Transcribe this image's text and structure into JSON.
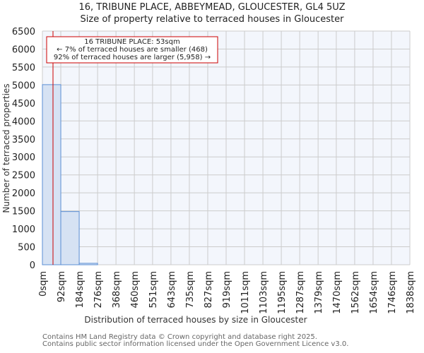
{
  "header": {
    "title": "16, TRIBUNE PLACE, ABBEYMEAD, GLOUCESTER, GL4 5UZ",
    "subtitle": "Size of property relative to terraced houses in Gloucester"
  },
  "annotation": {
    "line1": "16 TRIBUNE PLACE: 53sqm",
    "line2": "← 7% of terraced houses are smaller (468)",
    "line3": "92% of terraced houses are larger (5,958) →",
    "marker_value": 53
  },
  "footer": {
    "line1": "Contains HM Land Registry data © Crown copyright and database right 2025.",
    "line2": "Contains public sector information licensed under the Open Government Licence v3.0."
  },
  "colors": {
    "bar_fill": "#d6e2f3",
    "bar_edge": "#5b8fd4",
    "plot_bg": "#f3f6fc",
    "grid": "#cccccc",
    "marker": "#cc0000"
  },
  "chart_data": {
    "type": "bar",
    "title": "16, TRIBUNE PLACE, ABBEYMEAD, GLOUCESTER, GL4 5UZ",
    "subtitle": "Size of property relative to terraced houses in Gloucester",
    "xlabel": "Distribution of terraced houses by size in Gloucester",
    "ylabel": "Number of terraced properties",
    "categories": [
      "0sqm",
      "92sqm",
      "184sqm",
      "276sqm",
      "368sqm",
      "460sqm",
      "551sqm",
      "643sqm",
      "735sqm",
      "827sqm",
      "919sqm",
      "1011sqm",
      "1103sqm",
      "1195sqm",
      "1287sqm",
      "1379sqm",
      "1470sqm",
      "1562sqm",
      "1654sqm",
      "1746sqm",
      "1838sqm"
    ],
    "bin_edges": [
      0,
      92,
      184,
      276,
      368,
      460,
      551,
      643,
      735,
      827,
      919,
      1011,
      1103,
      1195,
      1287,
      1379,
      1470,
      1562,
      1654,
      1746,
      1838
    ],
    "values": [
      5010,
      1480,
      40,
      0,
      0,
      0,
      0,
      0,
      0,
      0,
      0,
      0,
      0,
      0,
      0,
      0,
      0,
      0,
      0,
      0
    ],
    "yticks": [
      0,
      500,
      1000,
      1500,
      2000,
      2500,
      3000,
      3500,
      4000,
      4500,
      5000,
      5500,
      6000,
      6500
    ],
    "ylim": [
      0,
      6500
    ],
    "xlim": [
      0,
      1838
    ],
    "grid": true,
    "marker_line": {
      "x": 53,
      "label": "16 TRIBUNE PLACE: 53sqm"
    }
  }
}
